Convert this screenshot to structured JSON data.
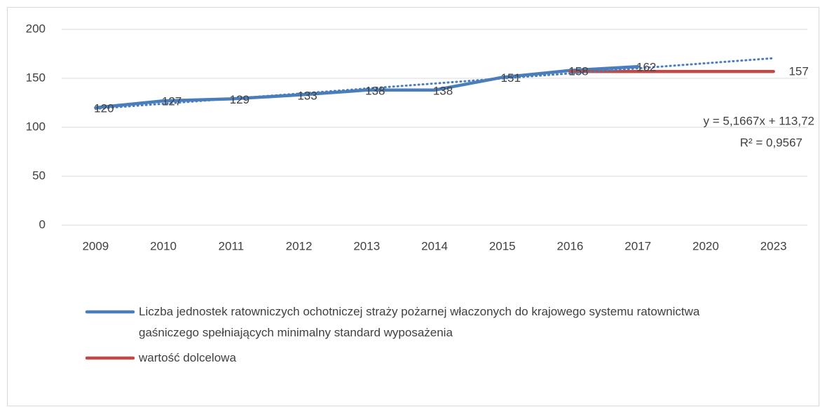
{
  "chart_data": {
    "type": "line",
    "categories": [
      "2009",
      "2010",
      "2011",
      "2012",
      "2013",
      "2014",
      "2015",
      "2016",
      "2017",
      "2020",
      "2023"
    ],
    "series": [
      {
        "name": "Liczba jednostek ratowniczych ochotniczej straży pożarnej właczonych do krajowego systemu ratownictwa gaśniczego spełniających minimalny standard wyposażenia",
        "color": "#4a7ebb",
        "values": [
          120,
          127,
          129,
          133,
          138,
          138,
          151,
          158,
          162,
          null,
          null
        ]
      },
      {
        "name": "wartość dolcelowa",
        "color": "#be4b48",
        "values": [
          null,
          null,
          null,
          null,
          null,
          null,
          null,
          157,
          157,
          157,
          157
        ]
      }
    ],
    "trendline": {
      "slope": 5.1667,
      "intercept": 113.72,
      "color": "#4a7ebb",
      "equation_label": "y = 5,1667x + 113,72",
      "r2_label": "R² = 0,9567"
    },
    "ylim": [
      0,
      200
    ],
    "yticks": [
      0,
      50,
      100,
      150,
      200
    ],
    "grid": true
  }
}
